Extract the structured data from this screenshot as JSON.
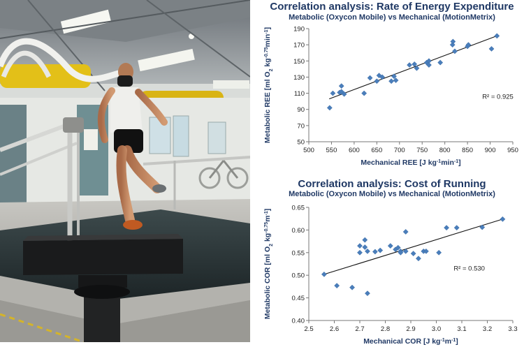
{
  "chart_data": [
    {
      "type": "scatter",
      "title": "Correlation analysis:  Rate of Energy Expenditure",
      "subtitle": "Metabolic (Oxycon Mobile) vs Mechanical (MotionMetrix)",
      "xlabel": "Mechanical REE [J kg-1min-1]",
      "ylabel": "Metabolic REE [ml O2 kg-0.75min-1]",
      "xlim": [
        500,
        950
      ],
      "ylim": [
        50,
        190
      ],
      "xticks": [
        500,
        550,
        600,
        650,
        700,
        750,
        800,
        850,
        900,
        950
      ],
      "yticks": [
        50,
        70,
        90,
        110,
        130,
        150,
        170,
        190
      ],
      "r2_label": "R² = 0.925",
      "trendline": [
        [
          545,
          103
        ],
        [
          915,
          181
        ]
      ],
      "points": [
        [
          546,
          92
        ],
        [
          553,
          110
        ],
        [
          568,
          111
        ],
        [
          572,
          119
        ],
        [
          572,
          112
        ],
        [
          578,
          109
        ],
        [
          622,
          110
        ],
        [
          635,
          129
        ],
        [
          650,
          125
        ],
        [
          655,
          132
        ],
        [
          662,
          130
        ],
        [
          682,
          125
        ],
        [
          688,
          131
        ],
        [
          692,
          126
        ],
        [
          722,
          145
        ],
        [
          733,
          146
        ],
        [
          738,
          141
        ],
        [
          760,
          148
        ],
        [
          765,
          150
        ],
        [
          765,
          145
        ],
        [
          790,
          148
        ],
        [
          817,
          170
        ],
        [
          818,
          174
        ],
        [
          822,
          162
        ],
        [
          850,
          168
        ],
        [
          852,
          170
        ],
        [
          903,
          165
        ],
        [
          915,
          181
        ]
      ]
    },
    {
      "type": "scatter",
      "title": "Correlation analysis:  Cost of Running",
      "subtitle": "Metabolic (Oxycon Mobile) vs Mechanical (MotionMetrix)",
      "xlabel": "Mechanical COR [J kg-1m-1]",
      "ylabel": "Metabolic COR [ml O2 kg-0.75m-1]",
      "xlim": [
        2.5,
        3.3
      ],
      "ylim": [
        0.4,
        0.65
      ],
      "xticks": [
        2.5,
        2.6,
        2.7,
        2.8,
        2.9,
        3.0,
        3.1,
        3.2,
        3.3
      ],
      "yticks": [
        0.4,
        0.45,
        0.5,
        0.55,
        0.6,
        0.65
      ],
      "r2_label": "R² = 0.530",
      "trendline": [
        [
          2.56,
          0.502
        ],
        [
          3.26,
          0.624
        ]
      ],
      "points": [
        [
          2.56,
          0.502
        ],
        [
          2.61,
          0.477
        ],
        [
          2.67,
          0.473
        ],
        [
          2.7,
          0.55
        ],
        [
          2.7,
          0.565
        ],
        [
          2.72,
          0.578
        ],
        [
          2.72,
          0.562
        ],
        [
          2.73,
          0.553
        ],
        [
          2.73,
          0.46
        ],
        [
          2.76,
          0.552
        ],
        [
          2.78,
          0.555
        ],
        [
          2.82,
          0.565
        ],
        [
          2.84,
          0.557
        ],
        [
          2.85,
          0.561
        ],
        [
          2.86,
          0.553
        ],
        [
          2.86,
          0.55
        ],
        [
          2.88,
          0.596
        ],
        [
          2.88,
          0.553
        ],
        [
          2.91,
          0.548
        ],
        [
          2.93,
          0.537
        ],
        [
          2.95,
          0.553
        ],
        [
          2.96,
          0.553
        ],
        [
          3.01,
          0.55
        ],
        [
          3.04,
          0.605
        ],
        [
          3.08,
          0.605
        ],
        [
          3.18,
          0.606
        ],
        [
          3.26,
          0.624
        ]
      ]
    }
  ]
}
